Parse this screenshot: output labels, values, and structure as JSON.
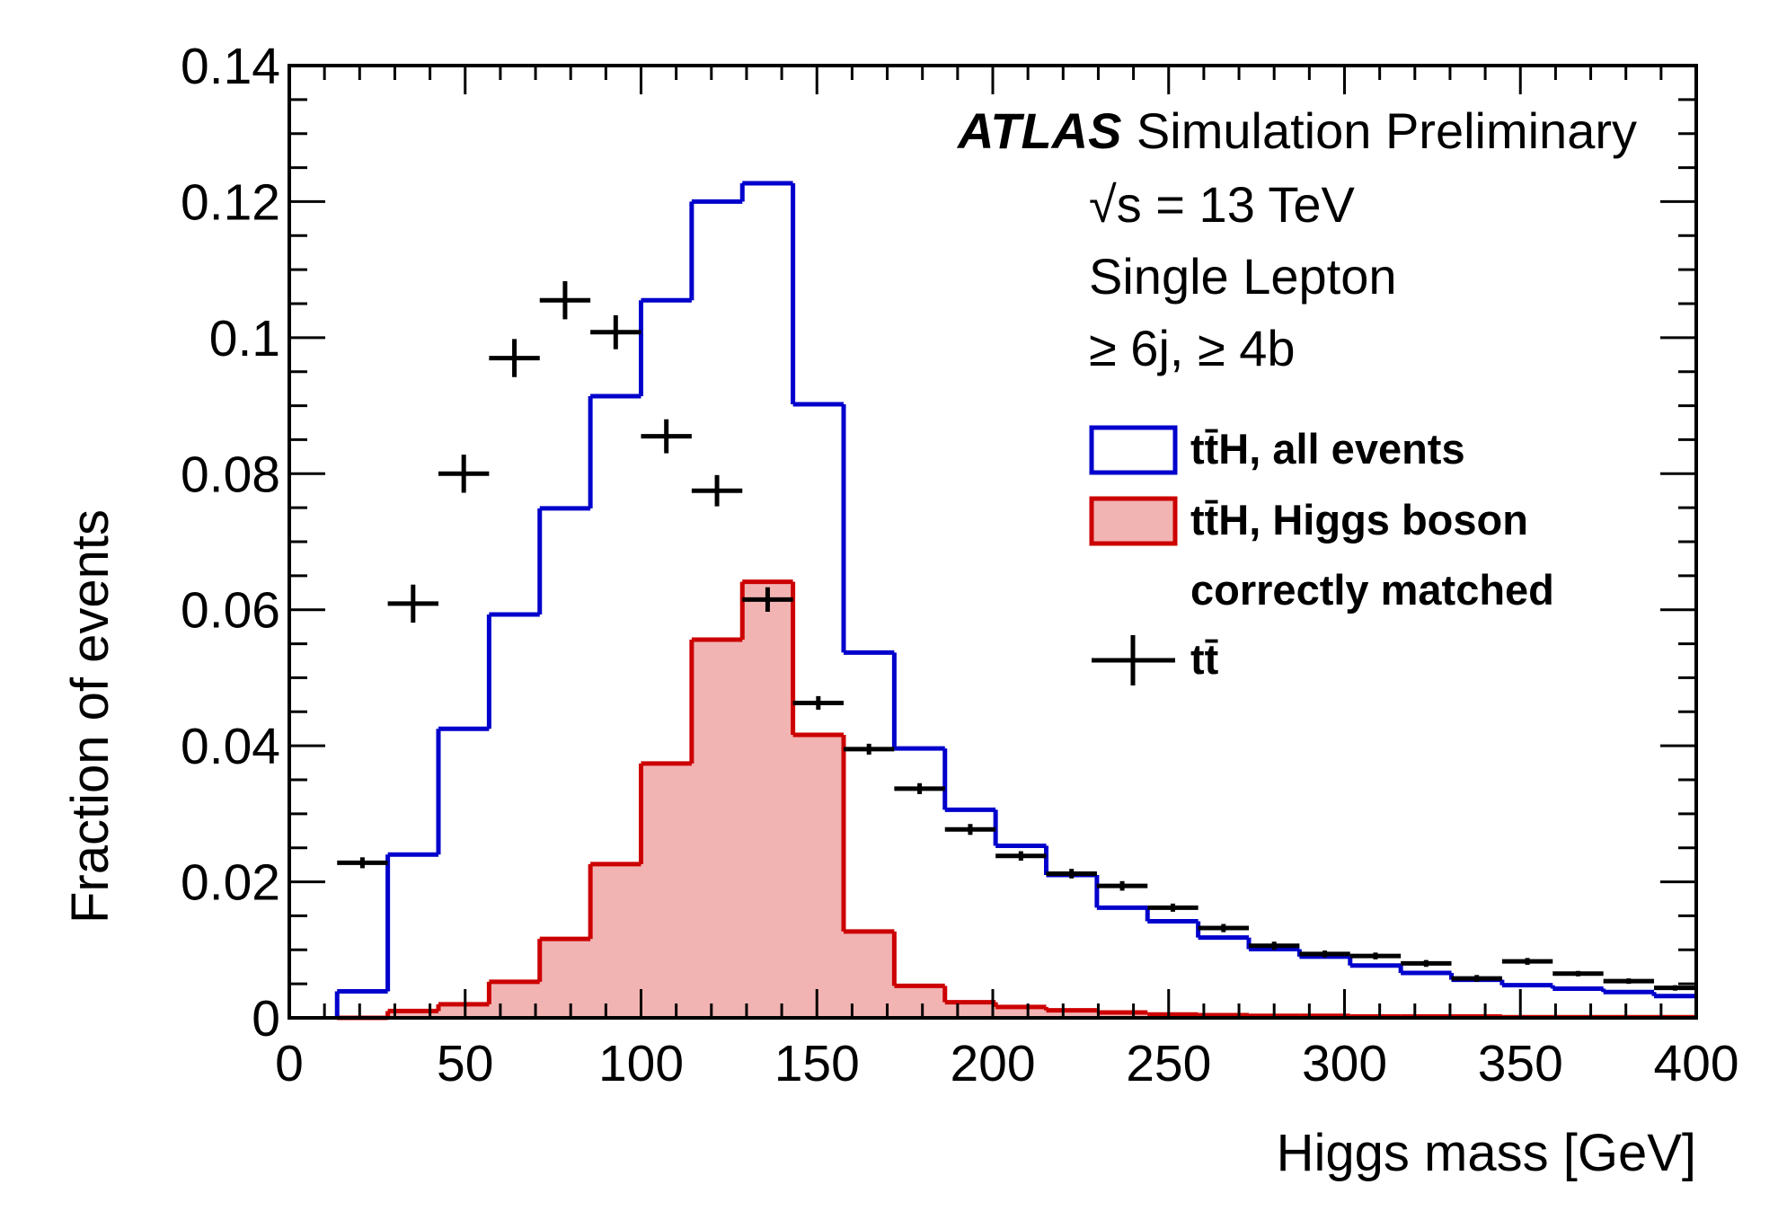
{
  "chart_data": {
    "type": "histogram",
    "xlabel": "Higgs mass [GeV]",
    "ylabel": "Fraction of events",
    "xlim": [
      0,
      400
    ],
    "ylim": [
      0,
      0.14
    ],
    "x_ticks": [
      "0",
      "50",
      "100",
      "150",
      "200",
      "250",
      "300",
      "350",
      "400"
    ],
    "y_ticks": [
      "0",
      "0.02",
      "0.04",
      "0.06",
      "0.08",
      "0.1",
      "0.12",
      "0.14"
    ],
    "bin_width": 14.4,
    "bin_edges_start": 13.6,
    "series": [
      {
        "name": "tt̄H, all events",
        "style": "step-line",
        "color": "#0000cc",
        "values": [
          0.0039,
          0.024,
          0.0425,
          0.0593,
          0.0749,
          0.0914,
          0.1055,
          0.12,
          0.1227,
          0.0902,
          0.0537,
          0.0396,
          0.0306,
          0.0253,
          0.021,
          0.0162,
          0.0142,
          0.0118,
          0.0101,
          0.009,
          0.0077,
          0.0066,
          0.0056,
          0.0048,
          0.0043,
          0.0038,
          0.0032
        ]
      },
      {
        "name": "tt̄H, Higgs boson correctly matched",
        "style": "filled-step",
        "color": "#cc0000",
        "fill": "#f2b3b3",
        "values": [
          0.0,
          0.001,
          0.002,
          0.0053,
          0.0116,
          0.0226,
          0.0374,
          0.0556,
          0.0641,
          0.0416,
          0.0127,
          0.0047,
          0.0023,
          0.0016,
          0.0011,
          0.0008,
          0.0005,
          0.0004,
          0.0003,
          0.0003,
          0.0002,
          0.0002,
          0.0002,
          0.0001,
          0.0001,
          0.0001,
          0.0001
        ]
      },
      {
        "name": "tt̄",
        "style": "points-errors",
        "color": "#000000",
        "values": [
          0.0228,
          0.0609,
          0.08,
          0.097,
          0.1055,
          0.1008,
          0.0855,
          0.0775,
          0.0615,
          0.0463,
          0.0395,
          0.0337,
          0.0277,
          0.0238,
          0.0212,
          0.0194,
          0.0162,
          0.0132,
          0.0106,
          0.0094,
          0.0091,
          0.008,
          0.0058,
          0.0083,
          0.0065,
          0.0054,
          0.0044
        ],
        "errors": [
          0.0008,
          0.0028,
          0.0028,
          0.0028,
          0.0028,
          0.0025,
          0.0025,
          0.0023,
          0.0018,
          0.001,
          0.0008,
          0.0008,
          0.0008,
          0.0007,
          0.0007,
          0.0007,
          0.0006,
          0.0006,
          0.0006,
          0.0005,
          0.0005,
          0.0005,
          0.0005,
          0.0005,
          0.0004,
          0.0004,
          0.0004
        ]
      }
    ],
    "annotations": {
      "experiment": "ATLAS",
      "label": "Simulation Preliminary",
      "energy": "√s = 13 TeV",
      "channel": "Single Lepton",
      "selection": "≥ 6j, ≥ 4b"
    },
    "legend": {
      "placement": "right",
      "entries": [
        "tt̄H, all events",
        "tt̄H, Higgs boson",
        "correctly matched",
        "tt̄"
      ]
    }
  }
}
